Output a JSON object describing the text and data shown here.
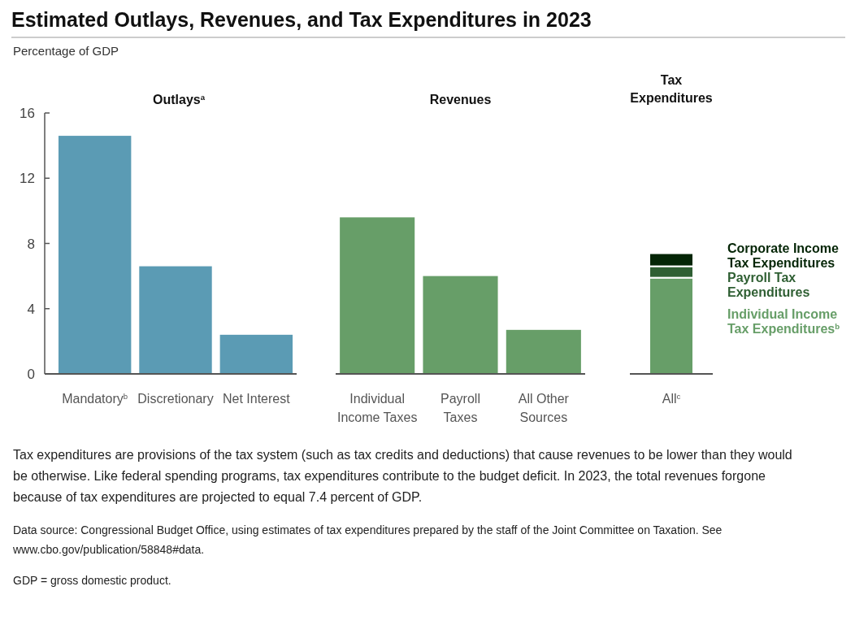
{
  "chart_data": [
    {
      "type": "other",
      "title": "Estimated Outlays, Revenues, and Tax Expenditures in 2023",
      "annotations": [
        "Tax expenditures are provisions of the tax system (such as tax credits and deductions) that cause revenues to be lower than they would be otherwise. Like federal spending programs, tax expenditures contribute to the budget deficit. In 2023, the total revenues forgone because of tax expenditures are projected to equal 7.4 percent of GDP.",
        "Data source: Congressional Budget Office, using estimates of tax expenditures prepared by the staff of the Joint Committee on Taxation. See www.cbo.gov/publication/58848#data.",
        "GDP = gross domestic product."
      ]
    },
    {
      "type": "bar",
      "title": "Outlays$^{a}$",
      "ylabel": "Percentage of GDP",
      "categories": [
        "Mandatory$^{b}$",
        "Discretionary",
        "Net Interest"
      ],
      "values": [
        14.6,
        6.6,
        2.4
      ],
      "color": "#5b9bb4",
      "ylim": [
        0,
        16
      ],
      "yticks": [
        0,
        4,
        8,
        12,
        16
      ]
    },
    {
      "type": "bar",
      "title": "Revenues",
      "categories": [
        "Individual Income Taxes",
        "Payroll Taxes",
        "All Other Sources"
      ],
      "values": [
        9.6,
        6.0,
        2.7
      ],
      "color": "#679e68",
      "ylim": [
        0,
        16
      ],
      "tick_labels": "x"
    },
    {
      "type": "bar",
      "title": "Tax Expenditures",
      "categories": [
        "All$^{c}$"
      ],
      "stacked": true,
      "legend": "right",
      "ylim": [
        0,
        16
      ],
      "tick_labels": "x",
      "series": [
        {
          "name": "Individual Income Tax Expenditures$^{b}$",
          "color": "#679e68",
          "values": [
            5.9
          ]
        },
        {
          "name": "Payroll Tax Expenditures",
          "color": "#2f5f33",
          "values": [
            0.7
          ]
        },
        {
          "name": "Corporate Income Tax Expenditures",
          "color": "#042506",
          "values": [
            0.8
          ]
        }
      ]
    }
  ]
}
